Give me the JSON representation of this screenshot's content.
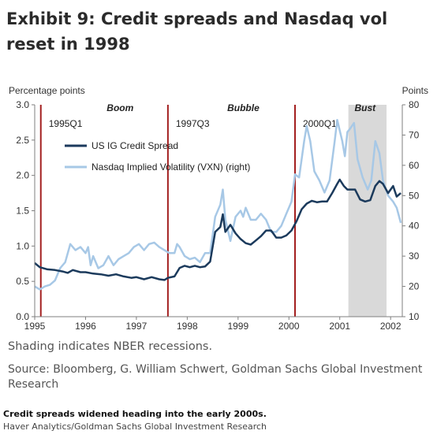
{
  "title": "Exhibit 9: Credit spreads and Nasdaq vol reset in 1998",
  "shading_note": "Shading indicates NBER recessions.",
  "source": "Source: Bloomberg, G. William Schwert, Goldman Sachs Global Investment Research",
  "caption": "Credit spreads widened heading into the early 2000s.",
  "credit": "Haver Analytics/Goldman Sachs Global Investment Research",
  "chart_data": {
    "type": "line",
    "ylabel_left": "Percentage points",
    "ylabel_right": "Points",
    "xlim": [
      1995,
      2002.23
    ],
    "ylim_left": [
      0,
      3
    ],
    "ylim_right": [
      10,
      80
    ],
    "x_ticks": [
      1995,
      1996,
      1997,
      1998,
      1999,
      2000,
      2001,
      2002
    ],
    "x_tick_labels": [
      "1995",
      "1996",
      "1997",
      "1998",
      "1999",
      "2000",
      "2001",
      "2002"
    ],
    "left_ticks": [
      0,
      0.5,
      1.0,
      1.5,
      2.0,
      2.5,
      3.0
    ],
    "left_tick_labels": [
      "0.0",
      "0.5",
      "1.0",
      "1.5",
      "2.0",
      "2.5",
      "3.0"
    ],
    "right_ticks": [
      10,
      20,
      30,
      40,
      50,
      60,
      70,
      80
    ],
    "right_tick_labels": [
      "10",
      "20",
      "30",
      "40",
      "50",
      "60",
      "70",
      "80"
    ],
    "recession": {
      "start": 2001.17,
      "end": 2001.92
    },
    "vertical_markers": [
      {
        "x": 1995.12,
        "label": "1995Q1",
        "phase": "Boom"
      },
      {
        "x": 1997.62,
        "label": "1997Q3",
        "phase": "Bubble"
      },
      {
        "x": 2000.12,
        "label": "2000Q1",
        "phase": "Bust"
      }
    ],
    "colors": {
      "credit": "#1b3a5c",
      "vxn": "#a7c8e6",
      "marker": "#a31f1f",
      "recession": "#d9d9d9",
      "axis": "#7f7f7f"
    },
    "series": [
      {
        "name": "US IG Credit Spread",
        "axis": "left",
        "points": [
          [
            1995.0,
            0.76
          ],
          [
            1995.1,
            0.7
          ],
          [
            1995.25,
            0.67
          ],
          [
            1995.4,
            0.66
          ],
          [
            1995.55,
            0.64
          ],
          [
            1995.65,
            0.62
          ],
          [
            1995.75,
            0.66
          ],
          [
            1995.9,
            0.63
          ],
          [
            1996.0,
            0.63
          ],
          [
            1996.15,
            0.61
          ],
          [
            1996.3,
            0.6
          ],
          [
            1996.45,
            0.58
          ],
          [
            1996.6,
            0.6
          ],
          [
            1996.75,
            0.57
          ],
          [
            1996.9,
            0.55
          ],
          [
            1997.0,
            0.56
          ],
          [
            1997.15,
            0.53
          ],
          [
            1997.3,
            0.56
          ],
          [
            1997.45,
            0.53
          ],
          [
            1997.55,
            0.52
          ],
          [
            1997.62,
            0.55
          ],
          [
            1997.75,
            0.57
          ],
          [
            1997.85,
            0.69
          ],
          [
            1997.95,
            0.72
          ],
          [
            1998.05,
            0.7
          ],
          [
            1998.15,
            0.72
          ],
          [
            1998.25,
            0.7
          ],
          [
            1998.35,
            0.71
          ],
          [
            1998.45,
            0.78
          ],
          [
            1998.55,
            1.2
          ],
          [
            1998.65,
            1.27
          ],
          [
            1998.7,
            1.45
          ],
          [
            1998.75,
            1.2
          ],
          [
            1998.85,
            1.3
          ],
          [
            1998.95,
            1.18
          ],
          [
            1999.05,
            1.1
          ],
          [
            1999.15,
            1.04
          ],
          [
            1999.25,
            1.02
          ],
          [
            1999.35,
            1.08
          ],
          [
            1999.45,
            1.14
          ],
          [
            1999.55,
            1.22
          ],
          [
            1999.65,
            1.22
          ],
          [
            1999.75,
            1.12
          ],
          [
            1999.85,
            1.12
          ],
          [
            1999.95,
            1.15
          ],
          [
            2000.05,
            1.22
          ],
          [
            2000.15,
            1.35
          ],
          [
            2000.25,
            1.52
          ],
          [
            2000.35,
            1.6
          ],
          [
            2000.45,
            1.64
          ],
          [
            2000.55,
            1.62
          ],
          [
            2000.65,
            1.63
          ],
          [
            2000.75,
            1.63
          ],
          [
            2000.85,
            1.75
          ],
          [
            2000.95,
            1.88
          ],
          [
            2001.0,
            1.94
          ],
          [
            2001.08,
            1.85
          ],
          [
            2001.15,
            1.8
          ],
          [
            2001.3,
            1.8
          ],
          [
            2001.4,
            1.66
          ],
          [
            2001.5,
            1.63
          ],
          [
            2001.6,
            1.65
          ],
          [
            2001.7,
            1.85
          ],
          [
            2001.78,
            1.92
          ],
          [
            2001.85,
            1.88
          ],
          [
            2001.95,
            1.75
          ],
          [
            2002.05,
            1.85
          ],
          [
            2002.12,
            1.7
          ],
          [
            2002.2,
            1.75
          ]
        ]
      },
      {
        "name": "Nasdaq Implied Volatility (VXN) (right)",
        "axis": "right",
        "points": [
          [
            1995.0,
            20
          ],
          [
            1995.1,
            19
          ],
          [
            1995.2,
            20
          ],
          [
            1995.3,
            20.5
          ],
          [
            1995.4,
            22
          ],
          [
            1995.5,
            26
          ],
          [
            1995.6,
            28
          ],
          [
            1995.7,
            34
          ],
          [
            1995.8,
            32
          ],
          [
            1995.9,
            33
          ],
          [
            1996.0,
            31
          ],
          [
            1996.05,
            33
          ],
          [
            1996.1,
            27
          ],
          [
            1996.15,
            30
          ],
          [
            1996.25,
            26
          ],
          [
            1996.35,
            27
          ],
          [
            1996.45,
            30
          ],
          [
            1996.55,
            27
          ],
          [
            1996.65,
            29
          ],
          [
            1996.75,
            30
          ],
          [
            1996.85,
            31
          ],
          [
            1996.95,
            33
          ],
          [
            1997.05,
            34
          ],
          [
            1997.15,
            32
          ],
          [
            1997.25,
            34
          ],
          [
            1997.35,
            34.5
          ],
          [
            1997.45,
            33
          ],
          [
            1997.55,
            32
          ],
          [
            1997.65,
            31
          ],
          [
            1997.75,
            31
          ],
          [
            1997.8,
            34
          ],
          [
            1997.85,
            33
          ],
          [
            1997.95,
            30
          ],
          [
            1998.05,
            29
          ],
          [
            1998.15,
            29.5
          ],
          [
            1998.25,
            28
          ],
          [
            1998.35,
            31
          ],
          [
            1998.45,
            31
          ],
          [
            1998.55,
            43
          ],
          [
            1998.65,
            47
          ],
          [
            1998.7,
            52
          ],
          [
            1998.75,
            42
          ],
          [
            1998.85,
            35
          ],
          [
            1998.95,
            43
          ],
          [
            1999.05,
            45
          ],
          [
            1999.1,
            43
          ],
          [
            1999.15,
            46
          ],
          [
            1999.25,
            42
          ],
          [
            1999.35,
            42
          ],
          [
            1999.45,
            44
          ],
          [
            1999.55,
            42
          ],
          [
            1999.65,
            38
          ],
          [
            1999.75,
            38
          ],
          [
            1999.85,
            40
          ],
          [
            1999.95,
            44
          ],
          [
            2000.05,
            48
          ],
          [
            2000.12,
            57
          ],
          [
            2000.2,
            56
          ],
          [
            2000.3,
            68
          ],
          [
            2000.35,
            73
          ],
          [
            2000.42,
            68
          ],
          [
            2000.5,
            58
          ],
          [
            2000.6,
            55
          ],
          [
            2000.7,
            51
          ],
          [
            2000.8,
            55
          ],
          [
            2000.9,
            68
          ],
          [
            2000.95,
            75
          ],
          [
            2001.05,
            68
          ],
          [
            2001.1,
            63
          ],
          [
            2001.15,
            71
          ],
          [
            2001.2,
            72
          ],
          [
            2001.28,
            74
          ],
          [
            2001.35,
            62
          ],
          [
            2001.45,
            56
          ],
          [
            2001.55,
            52
          ],
          [
            2001.62,
            55
          ],
          [
            2001.7,
            68
          ],
          [
            2001.78,
            64
          ],
          [
            2001.85,
            55
          ],
          [
            2001.95,
            50
          ],
          [
            2002.05,
            48
          ],
          [
            2002.12,
            46
          ],
          [
            2002.2,
            41
          ]
        ]
      }
    ]
  }
}
